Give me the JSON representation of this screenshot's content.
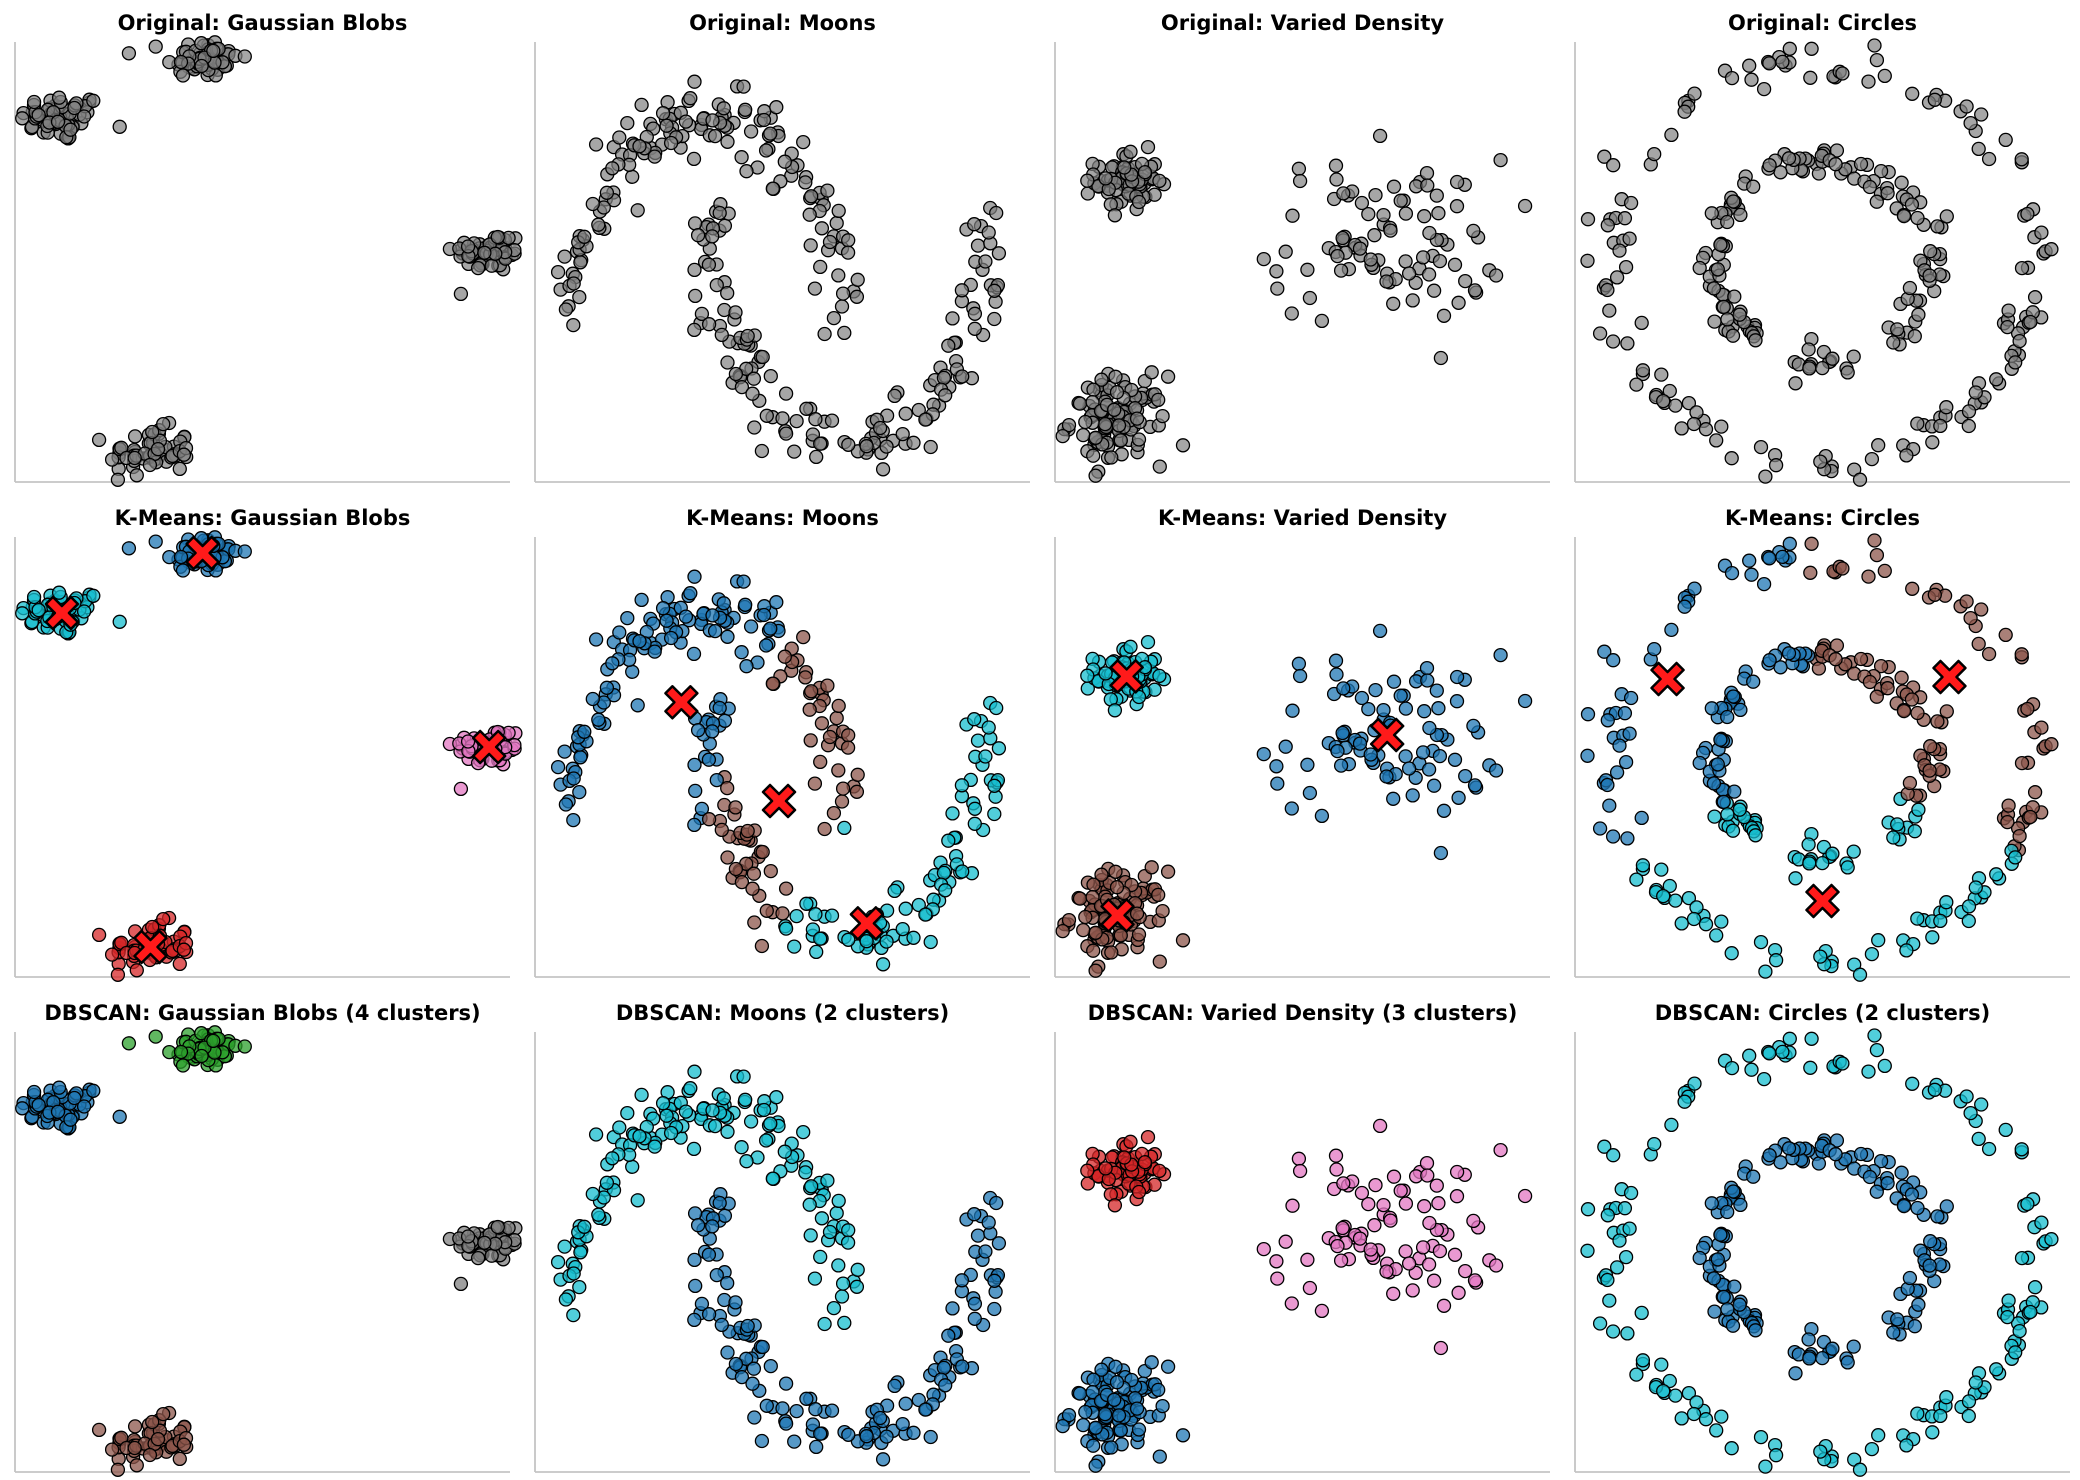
{
  "chart_data": {
    "type": "scatter",
    "grid": false,
    "show_ticks": false,
    "layout": "3x4 grid",
    "point_colors": {
      "original": "#808080",
      "blue": "#1f77b4",
      "cyan": "#17becf",
      "brown": "#8c564b",
      "red": "#d62728",
      "green": "#2ca02c",
      "pink": "#e377c2",
      "noise": "#222222",
      "centroid_marker": "#ff1a1a"
    },
    "rows": [
      {
        "method": "Original",
        "panels": [
          {
            "title": "Original: Gaussian Blobs",
            "dataset": "blobs"
          },
          {
            "title": "Original: Moons",
            "dataset": "moons"
          },
          {
            "title": "Original: Varied Density",
            "dataset": "varied"
          },
          {
            "title": "Original: Circles",
            "dataset": "circles"
          }
        ]
      },
      {
        "method": "K-Means",
        "panels": [
          {
            "title": "K-Means: Gaussian Blobs",
            "dataset": "blobs",
            "centroids": [
              [
                -0.72,
                0.62
              ],
              [
                -0.18,
                0.92
              ],
              [
                0.92,
                -0.05
              ],
              [
                -0.38,
                -1.05
              ]
            ]
          },
          {
            "title": "K-Means: Moons",
            "dataset": "moons",
            "centroids": [
              [
                -0.2,
                0.58
              ],
              [
                1.13,
                -0.45
              ],
              [
                0.5,
                0.12
              ]
            ]
          },
          {
            "title": "K-Means: Varied Density",
            "dataset": "varied",
            "centroids": [
              [
                -0.95,
                0.75
              ],
              [
                1.05,
                0.35
              ],
              [
                -1.02,
                -0.88
              ]
            ]
          },
          {
            "title": "K-Means: Circles",
            "dataset": "circles",
            "centroids": [
              [
                -0.72,
                0.39
              ],
              [
                0.59,
                0.4
              ],
              [
                0.0,
                -0.72
              ]
            ]
          }
        ]
      },
      {
        "method": "DBSCAN",
        "panels": [
          {
            "title": "DBSCAN: Gaussian Blobs (4 clusters)",
            "dataset": "blobs"
          },
          {
            "title": "DBSCAN: Moons (2 clusters)",
            "dataset": "moons"
          },
          {
            "title": "DBSCAN: Varied Density (3 clusters)",
            "dataset": "varied"
          },
          {
            "title": "DBSCAN: Circles (2 clusters)",
            "dataset": "circles"
          }
        ]
      }
    ],
    "datasets": {
      "blobs": {
        "xlim": [
          -0.9,
          1.0
        ],
        "ylim": [
          -1.2,
          1.0
        ],
        "clusters": [
          {
            "center": [
              -0.72,
              0.62
            ],
            "spread": [
              0.08,
              0.06
            ],
            "n": 60
          },
          {
            "center": [
              -0.18,
              0.92
            ],
            "spread": [
              0.07,
              0.05
            ],
            "n": 60
          },
          {
            "center": [
              0.92,
              -0.05
            ],
            "spread": [
              0.07,
              0.05
            ],
            "n": 60
          },
          {
            "center": [
              -0.38,
              -1.05
            ],
            "spread": [
              0.08,
              0.06
            ],
            "n": 60
          }
        ],
        "kmeans_colors": [
          "cyan",
          "blue",
          "pink",
          "red"
        ],
        "dbscan_colors": [
          "blue",
          "green",
          "original",
          "brown"
        ]
      },
      "moons": {
        "xlim": [
          -1.25,
          2.3
        ],
        "ylim": [
          -0.7,
          1.35
        ],
        "n_per_moon": 150,
        "noise": 0.08,
        "dbscan_colors": [
          "cyan",
          "blue"
        ]
      },
      "varied": {
        "xlim": [
          -1.5,
          2.3
        ],
        "ylim": [
          -1.3,
          1.7
        ],
        "clusters": [
          {
            "center": [
              -0.95,
              0.75
            ],
            "spread": [
              0.12,
              0.1
            ],
            "n": 70
          },
          {
            "center": [
              1.05,
              0.35
            ],
            "spread": [
              0.45,
              0.28
            ],
            "n": 90
          },
          {
            "center": [
              -1.02,
              -0.88
            ],
            "spread": [
              0.18,
              0.15
            ],
            "n": 110
          }
        ],
        "kmeans_colors": [
          "cyan",
          "blue",
          "brown"
        ],
        "dbscan_colors": [
          "red",
          "pink",
          "blue"
        ]
      },
      "circles": {
        "xlim": [
          -1.15,
          1.15
        ],
        "ylim": [
          -1.1,
          1.1
        ],
        "radii": [
          1.0,
          0.5
        ],
        "n_per_circle": 150,
        "noise": 0.05,
        "dbscan_colors": [
          "cyan",
          "blue"
        ]
      }
    }
  }
}
